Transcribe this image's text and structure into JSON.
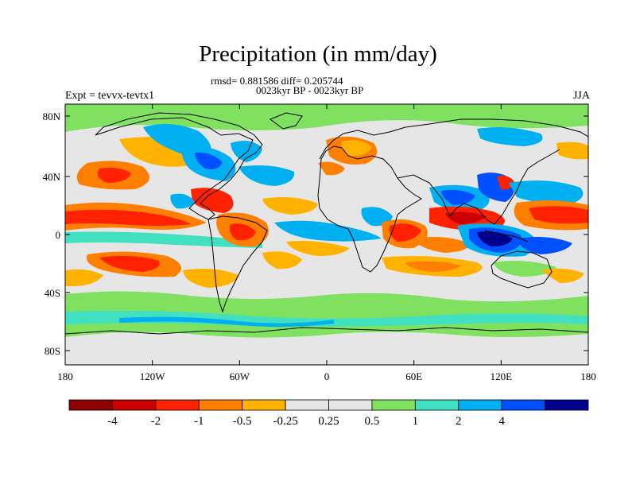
{
  "header": {
    "title": "Precipitation (in mm/day)",
    "stats": "rmsd= 0.881586 diff= 0.205744",
    "period": "0023kyr BP - 0023kyr BP",
    "experiment": "Expt = tevvx-tevtx1",
    "season": "JJA"
  },
  "axes": {
    "x_ticks": [
      "180",
      "120W",
      "60W",
      "0",
      "60E",
      "120E",
      "180"
    ],
    "y_ticks": [
      "80N",
      "40N",
      "0",
      "40S",
      "80S"
    ]
  },
  "colorbar": {
    "colors": [
      "#8b0000",
      "#cc0000",
      "#ff2200",
      "#ff7f00",
      "#ffb300",
      "#e6e6e6",
      "#e6e6e6",
      "#80e060",
      "#40e0c0",
      "#00b0f0",
      "#0050ff",
      "#00008b"
    ],
    "labels": [
      "-4",
      "-2",
      "-1",
      "-0.5",
      "-0.25",
      "0.25",
      "0.5",
      "1",
      "2",
      "4"
    ]
  }
}
